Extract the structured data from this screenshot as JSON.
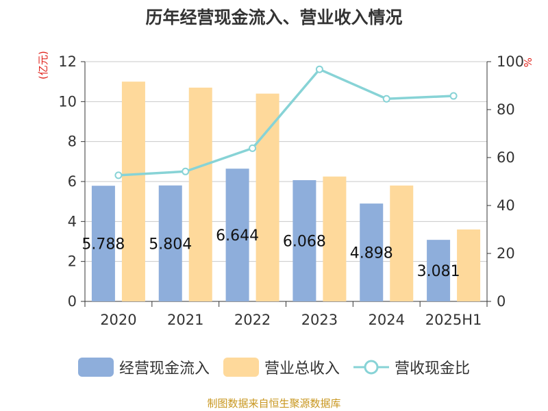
{
  "chart_data": {
    "type": "bar",
    "title": "历年经营现金流入、营业收入情况",
    "left_unit": "(亿元)",
    "right_unit": "%",
    "categories": [
      "2020",
      "2021",
      "2022",
      "2023",
      "2024",
      "2025H1"
    ],
    "series": [
      {
        "name": "经营现金流入",
        "type": "bar",
        "axis": "left",
        "color": "#8eaedb",
        "values": [
          5.788,
          5.804,
          6.644,
          6.068,
          4.898,
          3.081
        ],
        "labels": [
          "5.788",
          "5.804",
          "6.644",
          "6.068",
          "4.898",
          "3.081"
        ]
      },
      {
        "name": "营业总收入",
        "type": "bar",
        "axis": "left",
        "color": "#fed99b",
        "values": [
          11.0,
          10.7,
          10.4,
          6.25,
          5.8,
          3.6
        ]
      },
      {
        "name": "营收现金比",
        "type": "line",
        "axis": "right",
        "color": "#87d3d6",
        "values": [
          52.6,
          54.2,
          63.9,
          96.8,
          84.5,
          85.7
        ]
      }
    ],
    "y_left": {
      "min": 0,
      "max": 12,
      "ticks": [
        "0",
        "2",
        "4",
        "6",
        "8",
        "10",
        "12"
      ]
    },
    "y_right": {
      "min": 0,
      "max": 100,
      "ticks": [
        "0",
        "20",
        "40",
        "60",
        "80",
        "100"
      ]
    },
    "grid": true,
    "legend_position": "bottom"
  },
  "source_text": "制图数据来自恒生聚源数据库"
}
